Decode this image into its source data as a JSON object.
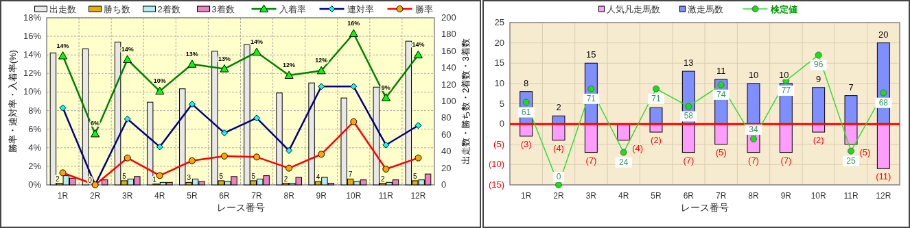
{
  "chart_data": [
    {
      "type": "bar",
      "categories": [
        "1R",
        "2R",
        "3R",
        "4R",
        "5R",
        "6R",
        "7R",
        "8R",
        "9R",
        "10R",
        "11R",
        "12R"
      ],
      "xlabel": "レース番号",
      "ylabel": "勝率・連対率・入着率(%)",
      "y2label": "出走数・勝ち数・2着数・3着数",
      "ylim": [
        0,
        18
      ],
      "yticks": [
        {
          "value": 0,
          "label": "0%"
        },
        {
          "value": 2,
          "label": "2%"
        },
        {
          "value": 4,
          "label": "4%"
        },
        {
          "value": 6,
          "label": "6%"
        },
        {
          "value": 8,
          "label": "8%"
        },
        {
          "value": 10,
          "label": "10%"
        },
        {
          "value": 12,
          "label": "12%"
        },
        {
          "value": 14,
          "label": "14%"
        },
        {
          "value": 16,
          "label": "16%"
        },
        {
          "value": 18,
          "label": "18%"
        }
      ],
      "y2lim": [
        0,
        200
      ],
      "y2ticks": [
        0,
        20,
        40,
        60,
        80,
        100,
        120,
        140,
        160,
        180,
        200
      ],
      "grid": true,
      "legend": "top",
      "series": [
        {
          "name": "出走数",
          "axis": "y2",
          "color": "#e8e8e8",
          "values": [
            158,
            163,
            171,
            99,
            115,
            160,
            168,
            110,
            122,
            104,
            117,
            172
          ]
        },
        {
          "name": "勝ち数",
          "axis": "y2",
          "color": "#e6b000",
          "values": [
            2,
            0,
            5,
            1,
            3,
            5,
            5,
            2,
            4,
            7,
            2,
            5
          ],
          "value_labels": [
            "2",
            "0",
            "5",
            "1",
            "3",
            "5",
            "5",
            "2",
            "4",
            "7",
            "2",
            "5"
          ]
        },
        {
          "name": "2着数",
          "axis": "y2",
          "color": "#b0f0f0",
          "values": [
            11,
            0,
            7,
            3,
            7,
            4,
            7,
            2,
            9,
            4,
            3,
            6
          ]
        },
        {
          "name": "3着数",
          "axis": "y2",
          "color": "#f080c0",
          "values": [
            8,
            6,
            10,
            3,
            4,
            10,
            11,
            9,
            2,
            6,
            6,
            13
          ]
        },
        {
          "name": "入着率",
          "type": "line",
          "marker": "triangle",
          "color": "#008000",
          "values": [
            13.9,
            5.5,
            13.5,
            10.1,
            13.0,
            12.5,
            14.3,
            11.8,
            12.3,
            16.3,
            9.4,
            14.0
          ],
          "value_labels": [
            "14%",
            "6%",
            "14%",
            "10%",
            "13%",
            "13%",
            "14%",
            "12%",
            "12%",
            "16%",
            "9%",
            "14%"
          ]
        },
        {
          "name": "連対率",
          "type": "line",
          "marker": "diamond",
          "color": "#000080",
          "values": [
            8.3,
            0,
            7.1,
            4.1,
            8.7,
            5.6,
            7.2,
            3.7,
            10.6,
            10.6,
            4.3,
            6.4
          ]
        },
        {
          "name": "勝率",
          "type": "line",
          "marker": "circle",
          "color": "#ff0000",
          "values": [
            1.3,
            0,
            2.9,
            1.0,
            2.6,
            3.1,
            3.0,
            1.8,
            3.3,
            6.8,
            1.7,
            2.9
          ]
        }
      ]
    },
    {
      "type": "bar",
      "stacked": true,
      "categories": [
        "1R",
        "2R",
        "3R",
        "4R",
        "5R",
        "6R",
        "7R",
        "8R",
        "9R",
        "10R",
        "11R",
        "12R"
      ],
      "xlabel": "レース番号",
      "ylim": [
        -15,
        25
      ],
      "yticks": [
        25,
        20,
        15,
        10,
        5,
        0,
        {
          "value": -5,
          "label": "(5)"
        },
        {
          "value": -10,
          "label": "(10)"
        },
        {
          "value": -15,
          "label": "(15)"
        }
      ],
      "y2lim": [
        0,
        120
      ],
      "grid": true,
      "legend": "top",
      "ref_lines": [
        {
          "axis": "y",
          "value": 0,
          "color": "#ff0000"
        }
      ],
      "series": [
        {
          "name": "人気凡走馬数",
          "color": "#ff9cff",
          "values": [
            -3,
            -4,
            -7,
            -4,
            -2,
            -7,
            -5,
            -7,
            -7,
            -2,
            -5,
            -11
          ],
          "value_labels": [
            "(3)",
            "(4)",
            "(7)",
            "(4)",
            "(2)",
            "(7)",
            "(5)",
            "(7)",
            "(7)",
            "(2)",
            "(5)",
            "(11)"
          ]
        },
        {
          "name": "激走馬数",
          "color": "#7f8fff",
          "values": [
            8,
            2,
            15,
            0,
            4,
            13,
            11,
            10,
            10,
            9,
            7,
            20
          ],
          "value_labels": [
            "8",
            "2",
            "15",
            null,
            null,
            "13",
            "11",
            "10",
            "10",
            "9",
            "7",
            "20"
          ]
        },
        {
          "name": "検定値",
          "type": "line",
          "axis": "y2",
          "marker": "circle",
          "color": "#33dd33",
          "values": [
            61,
            0,
            71,
            24,
            71,
            58,
            74,
            34,
            77,
            96,
            25,
            68
          ],
          "data_labels": true
        }
      ]
    }
  ]
}
